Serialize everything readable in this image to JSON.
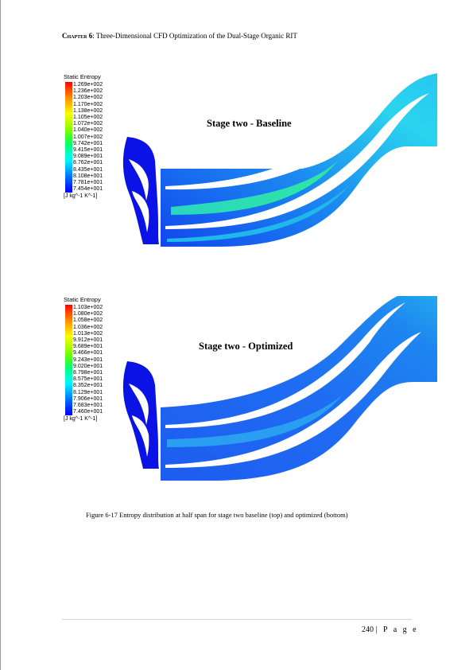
{
  "header": {
    "chapter_label": "Chapter 6",
    "chapter_title": ": Three-Dimensional CFD Optimization of the Dual-Stage Organic RIT"
  },
  "figures": {
    "baseline": {
      "title": "Stage two - Baseline",
      "legend_title": "Static Entropy",
      "legend_values": [
        "1.269e+002",
        "1.236e+002",
        "1.203e+002",
        "1.170e+002",
        "1.138e+002",
        "1.105e+002",
        "1.072e+002",
        "1.040e+002",
        "1.007e+002",
        "9.742e+001",
        "9.415e+001",
        "9.089e+001",
        "8.762e+001",
        "8.435e+001",
        "8.108e+001",
        "7.781e+001",
        "7.454e+001"
      ],
      "legend_units": "[J kg^-1 K^-1]"
    },
    "optimized": {
      "title": "Stage two - Optimized",
      "legend_title": "Static Entropy",
      "legend_values": [
        "1.103e+002",
        "1.080e+002",
        "1.058e+002",
        "1.036e+002",
        "1.013e+002",
        "9.912e+001",
        "9.689e+001",
        "9.466e+001",
        "9.243e+001",
        "9.020e+001",
        "8.798e+001",
        "8.575e+001",
        "8.352e+001",
        "8.129e+001",
        "7.906e+001",
        "7.683e+001",
        "7.460e+001"
      ],
      "legend_units": "[J kg^-1 K^-1]"
    }
  },
  "colors": {
    "legend_scale": [
      "#ff0000",
      "#ff4a00",
      "#ff8c00",
      "#ffc400",
      "#f6ff00",
      "#c2ff00",
      "#86ff00",
      "#3cff2b",
      "#00ff73",
      "#00ffc0",
      "#00f2ff",
      "#00b3ff",
      "#0070ff",
      "#0033ff",
      "#0000ff"
    ],
    "domain_dark": "#0a1ee6",
    "domain_mid": "#1f6cf2",
    "domain_light": "#22c8ee",
    "domain_green": "#28e6a0"
  },
  "caption": "Figure 6-17 Entropy distribution at half span for stage two baseline (top) and optimized (bottom)",
  "footer": {
    "page_number": "240",
    "page_label": "| P a g e"
  }
}
